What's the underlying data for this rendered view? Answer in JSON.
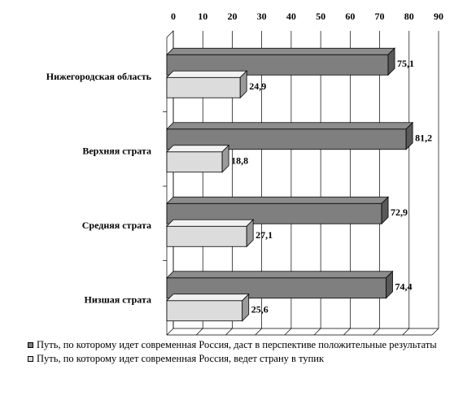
{
  "chart_data": {
    "type": "bar",
    "orientation": "horizontal",
    "categories": [
      "Нижегородская область",
      "Верхняя страта",
      "Средняя страта",
      "Низшая страта"
    ],
    "series": [
      {
        "name": "Путь, по которому идет современная Россия, даст в перспективе положительные результаты",
        "values": [
          75.1,
          81.2,
          72.9,
          74.4
        ],
        "labels": [
          "75,1",
          "81,2",
          "72,9",
          "74,4"
        ],
        "color": "#7f7f7f"
      },
      {
        "name": "Путь, по которому идет современная Россия, ведет страну в тупик",
        "values": [
          24.9,
          18.8,
          27.1,
          25.6
        ],
        "labels": [
          "24,9",
          "18,8",
          "27,1",
          "25,6"
        ],
        "color": "#dcdcdc"
      }
    ],
    "xlim": [
      0,
      90
    ],
    "xticks": [
      "0",
      "10",
      "20",
      "30",
      "40",
      "50",
      "60",
      "70",
      "80",
      "90"
    ],
    "axis_position": "top",
    "grid": true,
    "legend_position": "bottom"
  }
}
